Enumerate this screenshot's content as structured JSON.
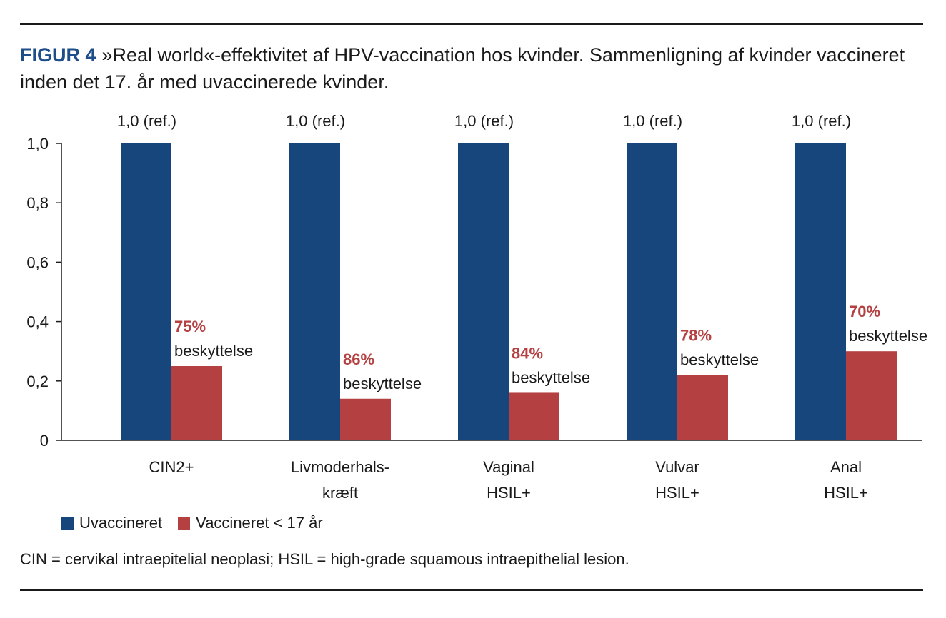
{
  "figure": {
    "label": "FIGUR 4",
    "caption": "»Real world«-effektivitet af HPV-vaccination hos kvinder. Sammenligning af kvinder vaccineret inden det 17. år med uvaccinerede kvinder.",
    "footnote": "CIN = cervikal intraepitelial neoplasi; HSIL = high-grade squamous intraepithelial lesion."
  },
  "colors": {
    "uvaccineret": "#17467c",
    "vaccineret": "#b54041",
    "accent": "#1d4e89",
    "protection": "#b54041"
  },
  "chart_data": {
    "type": "bar",
    "categories": [
      [
        "CIN2+"
      ],
      [
        "Livmoderhals-",
        "kræft"
      ],
      [
        "Vaginal",
        "HSIL+"
      ],
      [
        "Vulvar",
        "HSIL+"
      ],
      [
        "Anal",
        "HSIL+"
      ]
    ],
    "series": [
      {
        "name": "Uvaccineret",
        "values": [
          1.0,
          1.0,
          1.0,
          1.0,
          1.0
        ],
        "color": "#17467c",
        "labels": [
          "1,0 (ref.)",
          "1,0 (ref.)",
          "1,0 (ref.)",
          "1,0 (ref.)",
          "1,0 (ref.)"
        ]
      },
      {
        "name": "Vaccineret < 17 år",
        "values": [
          0.25,
          0.14,
          0.16,
          0.22,
          0.3
        ],
        "color": "#b54041",
        "labels": [
          {
            "pct": "75%",
            "text": "beskyttelse"
          },
          {
            "pct": "86%",
            "text": "beskyttelse"
          },
          {
            "pct": "84%",
            "text": "beskyttelse"
          },
          {
            "pct": "78%",
            "text": "beskyttelse"
          },
          {
            "pct": "70%",
            "text": "beskyttelse"
          }
        ]
      }
    ],
    "ylim": [
      0,
      1.0
    ],
    "yticks": [
      "0",
      "0,2",
      "0,4",
      "0,6",
      "0,8",
      "1,0"
    ],
    "ytick_values": [
      0,
      0.2,
      0.4,
      0.6,
      0.8,
      1.0
    ],
    "grid": false,
    "legend_position": "bottom-left"
  }
}
